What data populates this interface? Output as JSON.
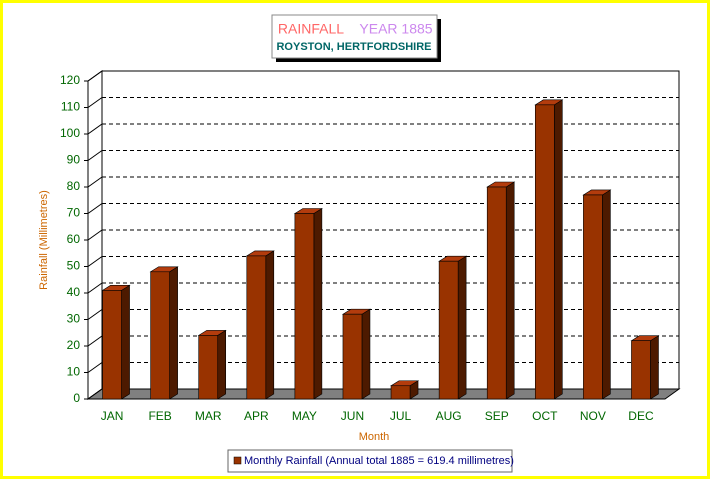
{
  "chart_data": {
    "type": "bar",
    "title": [
      "RAINFALL",
      "YEAR 1885"
    ],
    "subtitle": "ROYSTON, HERTFORDSHIRE",
    "x_label": "Month",
    "y_label": "Rainfall (Millimetres)",
    "categories": [
      "JAN",
      "FEB",
      "MAR",
      "APR",
      "MAY",
      "JUN",
      "JUL",
      "AUG",
      "SEP",
      "OCT",
      "NOV",
      "DEC"
    ],
    "series": [
      {
        "name": "Monthly Rainfall (Annual total 1885 = 619.4 millimetres)",
        "color": "#993300",
        "values": [
          41,
          48,
          24,
          54,
          70,
          32,
          5,
          52,
          80,
          111,
          77,
          22
        ]
      }
    ],
    "ylim": [
      0,
      120
    ],
    "yticks": [
      0,
      10,
      20,
      30,
      40,
      50,
      60,
      70,
      80,
      90,
      100,
      110,
      120
    ],
    "grid": true
  }
}
